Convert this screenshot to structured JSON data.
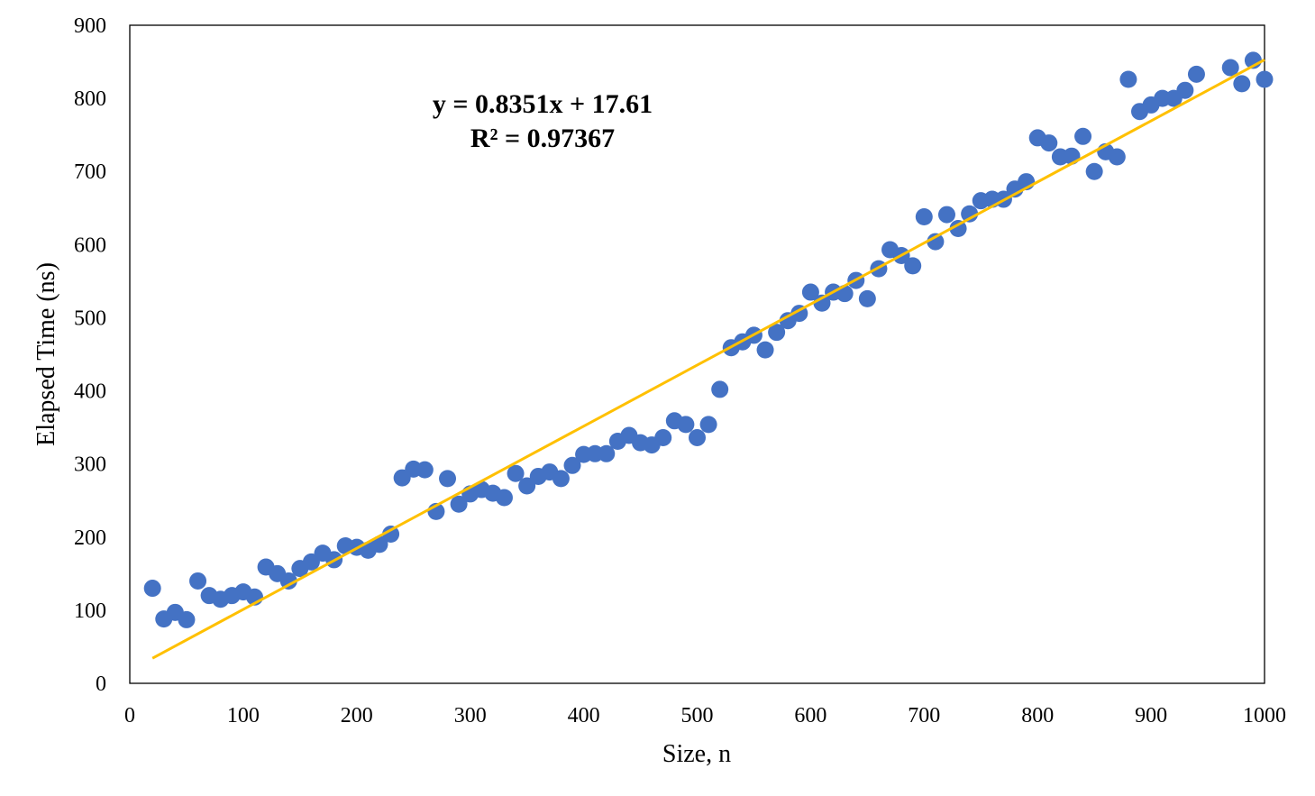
{
  "chart_data": {
    "type": "scatter",
    "title": "",
    "xlabel": "Size, n",
    "ylabel": "Elapsed Time (ns)",
    "xlim": [
      0,
      1000
    ],
    "ylim": [
      0,
      900
    ],
    "xticks": [
      "0",
      "100",
      "200",
      "300",
      "400",
      "500",
      "600",
      "700",
      "800",
      "900",
      "1000"
    ],
    "yticks": [
      "0",
      "100",
      "200",
      "300",
      "400",
      "500",
      "600",
      "700",
      "800",
      "900"
    ],
    "grid": false,
    "legend": "none",
    "point_color": "#4472C4",
    "trendline_color": "#FFC000",
    "series": [
      {
        "x": [
          20,
          30,
          40,
          50,
          60,
          70,
          80,
          90,
          100,
          110,
          120,
          130,
          140,
          150,
          160,
          170,
          180,
          190,
          200,
          210,
          220,
          230,
          240,
          250,
          260,
          270,
          280,
          290,
          300,
          310,
          320,
          330,
          340,
          350,
          360,
          370,
          380,
          390,
          400,
          410,
          420,
          430,
          440,
          450,
          460,
          470,
          480,
          490,
          500,
          510,
          520,
          530,
          540,
          550,
          560,
          570,
          580,
          590,
          600,
          610,
          620,
          630,
          640,
          650,
          660,
          670,
          680,
          690,
          700,
          710,
          720,
          730,
          740,
          750,
          760,
          770,
          780,
          790,
          800,
          810,
          820,
          830,
          840,
          850,
          860,
          870,
          880,
          890,
          900,
          910,
          920,
          930,
          940,
          970,
          980,
          990,
          1000
        ],
        "y": [
          130,
          88,
          97,
          87,
          140,
          120,
          115,
          120,
          125,
          118,
          159,
          150,
          140,
          157,
          166,
          178,
          169,
          188,
          186,
          182,
          190,
          204,
          281,
          293,
          292,
          235,
          280,
          245,
          259,
          265,
          260,
          254,
          287,
          270,
          283,
          289,
          280,
          298,
          313,
          314,
          314,
          331,
          339,
          329,
          326,
          336,
          359,
          354,
          336,
          354,
          402,
          459,
          467,
          476,
          456,
          480,
          496,
          506,
          535,
          520,
          535,
          533,
          551,
          526,
          567,
          593,
          585,
          571,
          638,
          604,
          641,
          622,
          642,
          660,
          662,
          662,
          676,
          686,
          746,
          739,
          720,
          721,
          748,
          700,
          727,
          720,
          826,
          782,
          791,
          800,
          800,
          811,
          833,
          842,
          820,
          852,
          826
        ]
      }
    ],
    "trendline": {
      "type": "linear",
      "slope": 0.8351,
      "intercept": 17.61,
      "x_range": [
        20,
        1000
      ],
      "equation_text": "y = 0.8351x + 17.61",
      "r2_text": "R² = 0.97367"
    }
  }
}
